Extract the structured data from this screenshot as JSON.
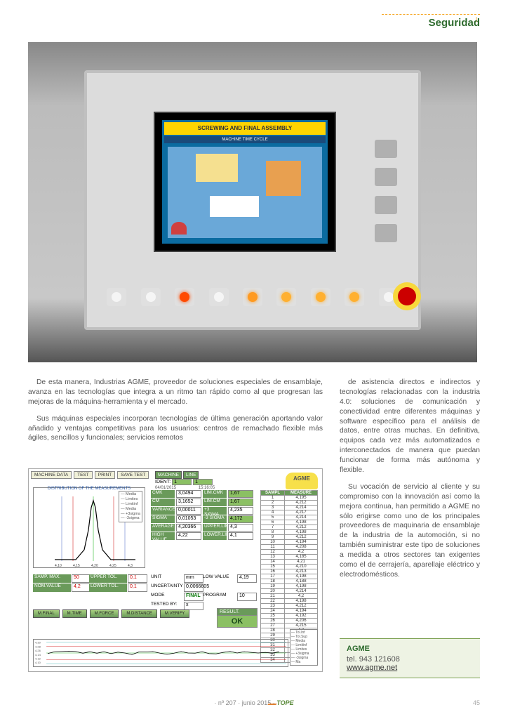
{
  "header": {
    "section": "Seguridad"
  },
  "photo": {
    "screen_title": "SCREWING AND FINAL ASSEMBLY",
    "screen_sub": "MACHINE TIME CYCLE",
    "led_colors": [
      "#f5f5f5",
      "#f5f5f5",
      "#ff4a00",
      "#f5f5f5",
      "#ff9a20",
      "#ffb030",
      "#ffb030",
      "#ffb030",
      "#f5f5f5"
    ]
  },
  "body": {
    "p1": "De esta manera, Industrias AGME, proveedor de soluciones especiales de ensamblaje, avanza en las tecnologías que integra a un ritmo tan rápido como al que progresan las mejoras de la máquina-herramienta y el mercado.",
    "p2": "Sus máquinas especiales incorporan tecnologías de última generación aportando valor añadido y ventajas competitivas para los usuarios: centros de remachado flexible más ágiles, sencillos y funcionales; servicios remotos",
    "p3": "de asistencia directos e indirectos y tecnologías relacionadas con la industria 4.0: soluciones de comunicación y conectividad entre diferentes máquinas y software específico para el análisis de datos, entre otras muchas. En definitiva, equipos cada vez más automatizados e interconectados de manera que puedan funcionar de forma más autónoma y flexible.",
    "p4": "Su vocación de servicio al cliente y su compromiso con la innovación así como la mejora continua, han permitido a AGME no sólo erigirse como uno de los principales proveedores de maquinaria de ensamblaje de la industria de la automoción, si no también suministrar este tipo de soluciones a medida a otros sectores tan exigentes como el de cerrajería, aparellaje eléctrico y electrodomésticos."
  },
  "software": {
    "logo": "AGME",
    "toolbar": [
      "MACHINE DATA",
      "TEST",
      "PRINT",
      "SAVE TEST"
    ],
    "machine_hdr": [
      "MACHINE",
      "LINE"
    ],
    "ident_label": "IDENT:",
    "ident_val": "1",
    "line_val": "1",
    "date": "04/01/2015",
    "time": "15:16:05",
    "chart_title": "DISTRIBUTION OF THE MEASUREMENTS",
    "legend_chart": [
      "Media",
      "Limites",
      "Limitinf",
      "Media",
      "+3sigma",
      "-3sigma"
    ],
    "stats": [
      [
        "CMK",
        "3,0494",
        "LIM.CMK",
        "1,67"
      ],
      [
        "CM",
        "3,1652",
        "LIM.CM",
        "1,67"
      ],
      [
        "VARIANCE",
        "0,00011",
        "+3 SIGMA",
        "4,235"
      ],
      [
        "SIGMA",
        "0,01053",
        "-3 SIGMA",
        "4,172"
      ],
      [
        "AVERAGE",
        "4,20366",
        "UPPER.LIMIT",
        "4,3"
      ],
      [
        "HIGH VALUE",
        "4,22",
        "LOWER.LIMIT",
        "4,1"
      ]
    ],
    "lims_green_idx": [
      1,
      3,
      7
    ],
    "lower": {
      "h": [
        "SAMP. MAX.",
        "UPPER TOL.",
        "NOM.VALUE",
        "LOWER TOL."
      ],
      "v": [
        "50",
        "0,1",
        "4,2",
        "0,1"
      ]
    },
    "lower2": {
      "labels": [
        "UNIT",
        "LOW VALUE",
        "UNCERTAINTY",
        "MODE",
        "PROGRAM",
        "TESTED BY:"
      ],
      "vals": [
        "mm",
        "4,19",
        "0,0066605",
        "FINAL",
        "10",
        "x"
      ]
    },
    "green_btns": [
      "M.FINAL",
      "M.TIME",
      "M.FORCE",
      "M.DISTANCE",
      "M.VERIFY"
    ],
    "result_label": "RESULT.",
    "result": "OK",
    "table_header": [
      "SAMPL",
      "MEASURE"
    ],
    "table": [
      [
        "1",
        "4,195"
      ],
      [
        "2",
        "4,212"
      ],
      [
        "3",
        "4,214"
      ],
      [
        "4",
        "4,217"
      ],
      [
        "5",
        "4,214"
      ],
      [
        "6",
        "4,198"
      ],
      [
        "7",
        "4,212"
      ],
      [
        "8",
        "4,198"
      ],
      [
        "9",
        "4,212"
      ],
      [
        "10",
        "4,194"
      ],
      [
        "11",
        "4,208"
      ],
      [
        "12",
        "4,2"
      ],
      [
        "13",
        "4,185"
      ],
      [
        "14",
        "4,21"
      ],
      [
        "15",
        "4,210"
      ],
      [
        "16",
        "4,213"
      ],
      [
        "17",
        "4,198"
      ],
      [
        "18",
        "4,188"
      ],
      [
        "19",
        "4,198"
      ],
      [
        "20",
        "4,214"
      ],
      [
        "21",
        "4,2"
      ],
      [
        "22",
        "4,198"
      ],
      [
        "23",
        "4,212"
      ],
      [
        "24",
        "4,194"
      ],
      [
        "25",
        "4,192"
      ],
      [
        "26",
        "4,206"
      ],
      [
        "27",
        "4,215"
      ],
      [
        "28",
        "4,2"
      ],
      [
        "29",
        "4,212"
      ],
      [
        "30",
        "4,206"
      ],
      [
        "31",
        "4,2"
      ],
      [
        "32",
        "4,206"
      ],
      [
        "33",
        "4,198"
      ],
      [
        "34",
        "4,212"
      ]
    ],
    "spc_legend": [
      "Tol.Inf",
      "Tol.Sup",
      "Media",
      "Limitinf",
      "Limites",
      "+3sigma",
      "-3sigma",
      "Ma"
    ],
    "spc_yticks": [
      "4,30",
      "4,28",
      "4,26",
      "4,14",
      "4,12",
      "4,10"
    ]
  },
  "contact": {
    "name": "AGME",
    "tel_label": "tel.",
    "tel": "943 121608",
    "web": "www.agme.net"
  },
  "footer": {
    "issue": "· nº 207 · junio 2015 ·",
    "logo": "TOPE",
    "page": "45"
  },
  "colors": {
    "green": "#2e6b2e",
    "orange": "#f5a623",
    "pale": "#eef3e4",
    "sw_green": "#6a9a5a",
    "sw_field_green": "#8bc063"
  }
}
